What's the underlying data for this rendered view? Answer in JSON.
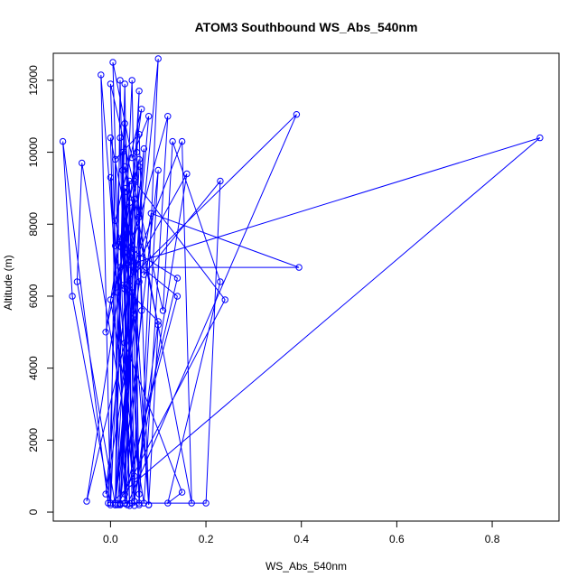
{
  "chart_data": {
    "type": "scatter",
    "title": "ATOM3 Southbound WS_Abs_540nm",
    "xlabel": "WS_Abs_540nm",
    "ylabel": "Altitude (m)",
    "xlim": [
      -0.12,
      0.94
    ],
    "ylim": [
      -250,
      12750
    ],
    "x_ticks": [
      0.0,
      0.2,
      0.4,
      0.6,
      0.8
    ],
    "x_tick_labels": [
      "0.0",
      "0.2",
      "0.4",
      "0.6",
      "0.8"
    ],
    "y_ticks": [
      0,
      2000,
      4000,
      6000,
      8000,
      10000,
      12000
    ],
    "y_tick_labels": [
      "0",
      "2000",
      "4000",
      "6000",
      "8000",
      "10000",
      "12000"
    ],
    "grid": false,
    "legend": "none",
    "color": "#0000ff",
    "series": [
      {
        "points": [
          [
            0.0,
            250
          ],
          [
            -0.08,
            6000
          ],
          [
            -0.1,
            10300
          ],
          [
            -0.005,
            250
          ],
          [
            0.02,
            10400
          ],
          [
            0.04,
            240
          ],
          [
            0.02,
            12000
          ],
          [
            0.01,
            200
          ],
          [
            0.06,
            11700
          ],
          [
            0.03,
            240
          ],
          [
            0.005,
            12500
          ],
          [
            0.045,
            9850
          ],
          [
            0.08,
            11000
          ],
          [
            0.01,
            250
          ],
          [
            0.1,
            12600
          ],
          [
            0.06,
            200
          ],
          [
            0.04,
            8600
          ],
          [
            0.05,
            180
          ],
          [
            -0.02,
            12150
          ],
          [
            0.0,
            200
          ],
          [
            0.03,
            9000
          ],
          [
            0.06,
            250
          ],
          [
            0.1,
            9500
          ],
          [
            0.02,
            220
          ],
          [
            0.07,
            10100
          ],
          [
            0.04,
            6300
          ],
          [
            0.045,
            250
          ],
          [
            0.03,
            11900
          ],
          [
            0.01,
            200
          ],
          [
            -0.07,
            6400
          ],
          [
            -0.06,
            9700
          ],
          [
            0.05,
            1000
          ],
          [
            0.0,
            9300
          ],
          [
            0.035,
            200
          ],
          [
            0.39,
            11050
          ],
          [
            0.025,
            6300
          ],
          [
            0.1,
            5300
          ],
          [
            0.05,
            300
          ],
          [
            0.06,
            8200
          ],
          [
            0.0,
            5900
          ],
          [
            0.07,
            250
          ],
          [
            0.12,
            11000
          ],
          [
            0.035,
            6900
          ],
          [
            0.025,
            10000
          ],
          [
            0.04,
            180
          ],
          [
            0.02,
            7500
          ],
          [
            0.14,
            6500
          ],
          [
            0.03,
            250
          ],
          [
            0.065,
            5600
          ],
          [
            0.055,
            10000
          ],
          [
            0.08,
            200
          ],
          [
            0.03,
            10800
          ],
          [
            0.01,
            200
          ],
          [
            0.06,
            6400
          ],
          [
            0.0,
            10400
          ],
          [
            0.02,
            200
          ],
          [
            0.06,
            9600
          ],
          [
            0.03,
            8900
          ],
          [
            0.04,
            7100
          ],
          [
            -0.01,
            500
          ],
          [
            0.035,
            4200
          ],
          [
            0.025,
            9500
          ],
          [
            0.05,
            300
          ],
          [
            0.16,
            9400
          ],
          [
            0.055,
            6900
          ],
          [
            0.015,
            200
          ],
          [
            0.24,
            5900
          ],
          [
            0.05,
            9200
          ],
          [
            0.02,
            250
          ],
          [
            0.2,
            250
          ],
          [
            0.23,
            9200
          ],
          [
            0.07,
            6600
          ],
          [
            0.06,
            10500
          ],
          [
            0.01,
            9800
          ],
          [
            0.0,
            250
          ],
          [
            0.9,
            10400
          ],
          [
            0.02,
            6800
          ],
          [
            0.395,
            6800
          ],
          [
            0.085,
            8300
          ],
          [
            0.05,
            5500
          ],
          [
            0.03,
            7200
          ],
          [
            0.045,
            12000
          ],
          [
            0.06,
            500
          ],
          [
            0.05,
            7300
          ],
          [
            0.03,
            9600
          ],
          [
            0.1,
            5200
          ],
          [
            0.08,
            200
          ],
          [
            0.045,
            6100
          ],
          [
            0.01,
            8100
          ],
          [
            0.065,
            11200
          ],
          [
            0.015,
            6100
          ],
          [
            0.04,
            9200
          ],
          [
            0.03,
            500
          ],
          [
            0.14,
            6000
          ],
          [
            0.01,
            7400
          ],
          [
            0.0,
            11900
          ],
          [
            0.11,
            5600
          ],
          [
            0.13,
            10300
          ],
          [
            0.23,
            6400
          ],
          [
            0.12,
            250
          ],
          [
            0.15,
            550
          ],
          [
            0.03,
            4700
          ],
          [
            -0.05,
            300
          ],
          [
            0.06,
            9800
          ],
          [
            0.02,
            7600
          ],
          [
            -0.01,
            5000
          ],
          [
            0.05,
            8700
          ],
          [
            0.17,
            250
          ],
          [
            0.15,
            10300
          ],
          [
            0.03,
            6200
          ]
        ]
      }
    ]
  }
}
